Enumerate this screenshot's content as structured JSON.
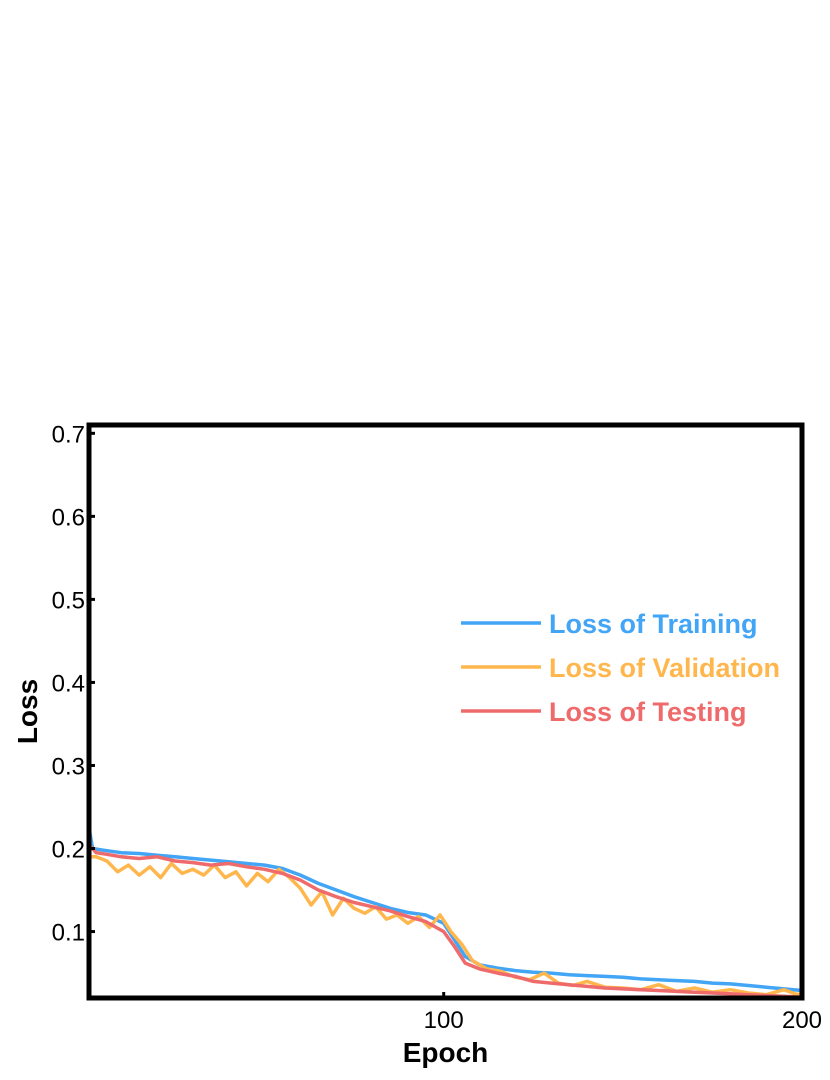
{
  "chart_data": {
    "type": "line",
    "title": "",
    "xlabel": "Epoch",
    "ylabel": "Loss",
    "xlim": [
      1,
      200
    ],
    "ylim": [
      0.02,
      0.71
    ],
    "x_ticks": [
      100,
      200
    ],
    "y_ticks": [
      0.1,
      0.2,
      0.3,
      0.4,
      0.5,
      0.6,
      0.7
    ],
    "grid": false,
    "legend_position": "right",
    "series": [
      {
        "name": "Loss of Training",
        "color": "#42a5f5",
        "x": [
          1,
          2,
          5,
          10,
          15,
          20,
          25,
          30,
          35,
          40,
          45,
          50,
          55,
          60,
          65,
          70,
          75,
          80,
          85,
          90,
          95,
          100,
          103,
          106,
          110,
          115,
          120,
          125,
          130,
          135,
          140,
          145,
          150,
          155,
          160,
          165,
          170,
          175,
          180,
          185,
          190,
          195,
          200
        ],
        "values": [
          0.225,
          0.2,
          0.198,
          0.195,
          0.194,
          0.192,
          0.19,
          0.188,
          0.186,
          0.184,
          0.182,
          0.18,
          0.176,
          0.168,
          0.158,
          0.15,
          0.142,
          0.135,
          0.128,
          0.123,
          0.12,
          0.11,
          0.09,
          0.07,
          0.06,
          0.056,
          0.053,
          0.051,
          0.05,
          0.048,
          0.047,
          0.046,
          0.045,
          0.043,
          0.042,
          0.041,
          0.04,
          0.038,
          0.037,
          0.035,
          0.033,
          0.031,
          0.029
        ]
      },
      {
        "name": "Loss of Validation",
        "color": "#ffb74d",
        "x": [
          1,
          3,
          6,
          9,
          12,
          15,
          18,
          21,
          24,
          27,
          30,
          33,
          36,
          39,
          42,
          45,
          48,
          51,
          54,
          57,
          60,
          63,
          66,
          69,
          72,
          75,
          78,
          81,
          84,
          87,
          90,
          93,
          96,
          99,
          102,
          105,
          108,
          112,
          116,
          120,
          124,
          128,
          132,
          136,
          140,
          145,
          150,
          155,
          160,
          165,
          170,
          175,
          180,
          185,
          190,
          195,
          198,
          200
        ],
        "values": [
          0.19,
          0.19,
          0.185,
          0.172,
          0.18,
          0.168,
          0.178,
          0.165,
          0.182,
          0.17,
          0.175,
          0.168,
          0.18,
          0.165,
          0.172,
          0.155,
          0.17,
          0.16,
          0.175,
          0.165,
          0.152,
          0.132,
          0.148,
          0.12,
          0.14,
          0.128,
          0.122,
          0.13,
          0.115,
          0.12,
          0.11,
          0.118,
          0.105,
          0.12,
          0.1,
          0.085,
          0.065,
          0.055,
          0.052,
          0.045,
          0.042,
          0.05,
          0.038,
          0.035,
          0.04,
          0.033,
          0.032,
          0.03,
          0.036,
          0.028,
          0.032,
          0.027,
          0.03,
          0.026,
          0.024,
          0.03,
          0.025,
          0.024
        ]
      },
      {
        "name": "Loss of Testing",
        "color": "#ef6b6b",
        "x": [
          1,
          3,
          6,
          10,
          15,
          20,
          25,
          30,
          35,
          40,
          45,
          50,
          55,
          60,
          65,
          70,
          75,
          80,
          85,
          90,
          95,
          100,
          103,
          106,
          110,
          115,
          120,
          125,
          130,
          135,
          140,
          145,
          150,
          155,
          160,
          165,
          170,
          175,
          180,
          185,
          190,
          195,
          200
        ],
        "values": [
          0.205,
          0.195,
          0.193,
          0.19,
          0.188,
          0.19,
          0.185,
          0.183,
          0.18,
          0.182,
          0.178,
          0.175,
          0.17,
          0.162,
          0.15,
          0.142,
          0.135,
          0.13,
          0.125,
          0.118,
          0.112,
          0.1,
          0.082,
          0.062,
          0.055,
          0.05,
          0.046,
          0.04,
          0.038,
          0.036,
          0.034,
          0.032,
          0.031,
          0.03,
          0.029,
          0.028,
          0.027,
          0.026,
          0.025,
          0.024,
          0.023,
          0.022,
          0.021
        ]
      }
    ]
  }
}
